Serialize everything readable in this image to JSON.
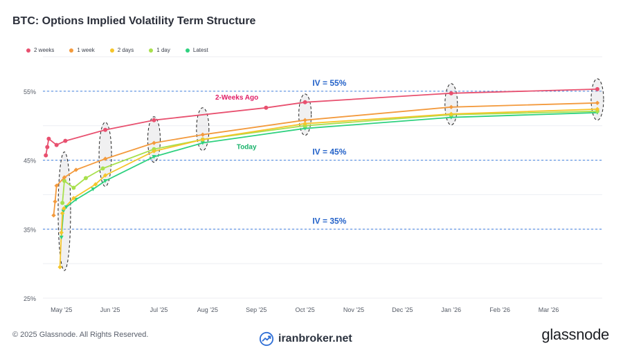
{
  "title": "BTC: Options Implied Volatility Term Structure",
  "footer": {
    "copyright": "© 2025 Glassnode. All Rights Reserved.",
    "watermark": "iranbroker.net",
    "brand": "glassnode"
  },
  "legend": [
    {
      "name": "2 weeks",
      "color": "#e8506f"
    },
    {
      "name": "1 week",
      "color": "#f39a3d"
    },
    {
      "name": "2 days",
      "color": "#f5c52a"
    },
    {
      "name": "1 day",
      "color": "#a8e04d"
    },
    {
      "name": "Latest",
      "color": "#2ed17f"
    }
  ],
  "chart_data": {
    "type": "line",
    "title": "BTC: Options Implied Volatility Term Structure",
    "x_unit": "month index (0 = May '25)",
    "xlim": [
      -0.38,
      11.1
    ],
    "ylim": [
      25,
      55
    ],
    "ylabel": "",
    "y_ticks": [
      "25%",
      "35%",
      "45%",
      "55%"
    ],
    "x_ticks": [
      "May '25",
      "Jun '25",
      "Jul '25",
      "Aug '25",
      "Sep '25",
      "Oct '25",
      "Nov '25",
      "Dec '25",
      "Jan '26",
      "Feb '26",
      "Mar '26"
    ],
    "series": [
      {
        "name": "2 weeks",
        "color": "#e8506f",
        "points": [
          [
            -0.32,
            45.7
          ],
          [
            -0.29,
            46.9
          ],
          [
            -0.26,
            48.1
          ],
          [
            -0.1,
            47.2
          ],
          [
            0.08,
            47.8
          ],
          [
            0.9,
            49.4
          ],
          [
            1.9,
            50.8
          ],
          [
            4.2,
            52.6
          ],
          [
            5.0,
            53.4
          ],
          [
            8.0,
            54.7
          ],
          [
            11.0,
            55.3
          ]
        ]
      },
      {
        "name": "1 week",
        "color": "#f39a3d",
        "points": [
          [
            -0.16,
            37.0
          ],
          [
            -0.13,
            39.0
          ],
          [
            -0.1,
            41.3
          ],
          [
            0.06,
            42.5
          ],
          [
            0.3,
            43.6
          ],
          [
            0.9,
            45.2
          ],
          [
            1.9,
            47.5
          ],
          [
            2.9,
            48.7
          ],
          [
            5.0,
            50.8
          ],
          [
            8.0,
            52.7
          ],
          [
            11.0,
            53.3
          ]
        ]
      },
      {
        "name": "2 days",
        "color": "#f5c52a",
        "points": [
          [
            -0.03,
            29.5
          ],
          [
            0.0,
            34.5
          ],
          [
            0.02,
            37.3
          ],
          [
            0.05,
            38.0
          ],
          [
            0.25,
            39.5
          ],
          [
            0.7,
            41.5
          ],
          [
            0.9,
            42.8
          ],
          [
            1.9,
            46.3
          ],
          [
            2.9,
            48.0
          ],
          [
            5.0,
            50.3
          ],
          [
            8.0,
            51.7
          ],
          [
            11.0,
            52.4
          ]
        ]
      },
      {
        "name": "1 day",
        "color": "#a8e04d",
        "points": [
          [
            0.02,
            38.8
          ],
          [
            0.06,
            42.0
          ],
          [
            0.25,
            41.0
          ],
          [
            0.5,
            42.4
          ],
          [
            0.85,
            43.8
          ],
          [
            1.9,
            46.6
          ],
          [
            2.9,
            48.0
          ],
          [
            5.0,
            50.0
          ],
          [
            8.0,
            51.6
          ],
          [
            11.0,
            52.1
          ]
        ]
      },
      {
        "name": "Latest",
        "color": "#2ed17f",
        "points": [
          [
            0.0,
            33.8
          ],
          [
            0.04,
            37.6
          ],
          [
            0.1,
            38.2
          ],
          [
            0.3,
            39.3
          ],
          [
            0.65,
            40.8
          ],
          [
            0.9,
            42.0
          ],
          [
            1.9,
            45.5
          ],
          [
            2.9,
            47.5
          ],
          [
            5.0,
            49.6
          ],
          [
            8.0,
            51.2
          ],
          [
            11.0,
            51.9
          ]
        ]
      }
    ],
    "reference_lines": [
      {
        "y": 55,
        "label": "IV = 55%"
      },
      {
        "y": 45,
        "label": "IV = 45%"
      },
      {
        "y": 35,
        "label": "IV = 35%"
      }
    ],
    "annotations": [
      {
        "text": "2-Weeks Ago",
        "color": "#e01e66",
        "x": 3.6,
        "y": 53.8
      },
      {
        "text": "Today",
        "color": "#18b26a",
        "x": 3.8,
        "y": 46.6
      }
    ],
    "highlight_ellipses": [
      {
        "x": 0.06,
        "ymin": 29,
        "ymax": 46.2
      },
      {
        "x": 0.9,
        "ymin": 41.2,
        "ymax": 50.5
      },
      {
        "x": 1.9,
        "ymin": 44.7,
        "ymax": 51.3
      },
      {
        "x": 2.9,
        "ymin": 46.4,
        "ymax": 52.6
      },
      {
        "x": 5.0,
        "ymin": 48.6,
        "ymax": 54.6
      },
      {
        "x": 8.0,
        "ymin": 50.1,
        "ymax": 56.1
      },
      {
        "x": 11.0,
        "ymin": 50.8,
        "ymax": 56.8
      }
    ],
    "grid": true,
    "legend_position": "top-left"
  }
}
